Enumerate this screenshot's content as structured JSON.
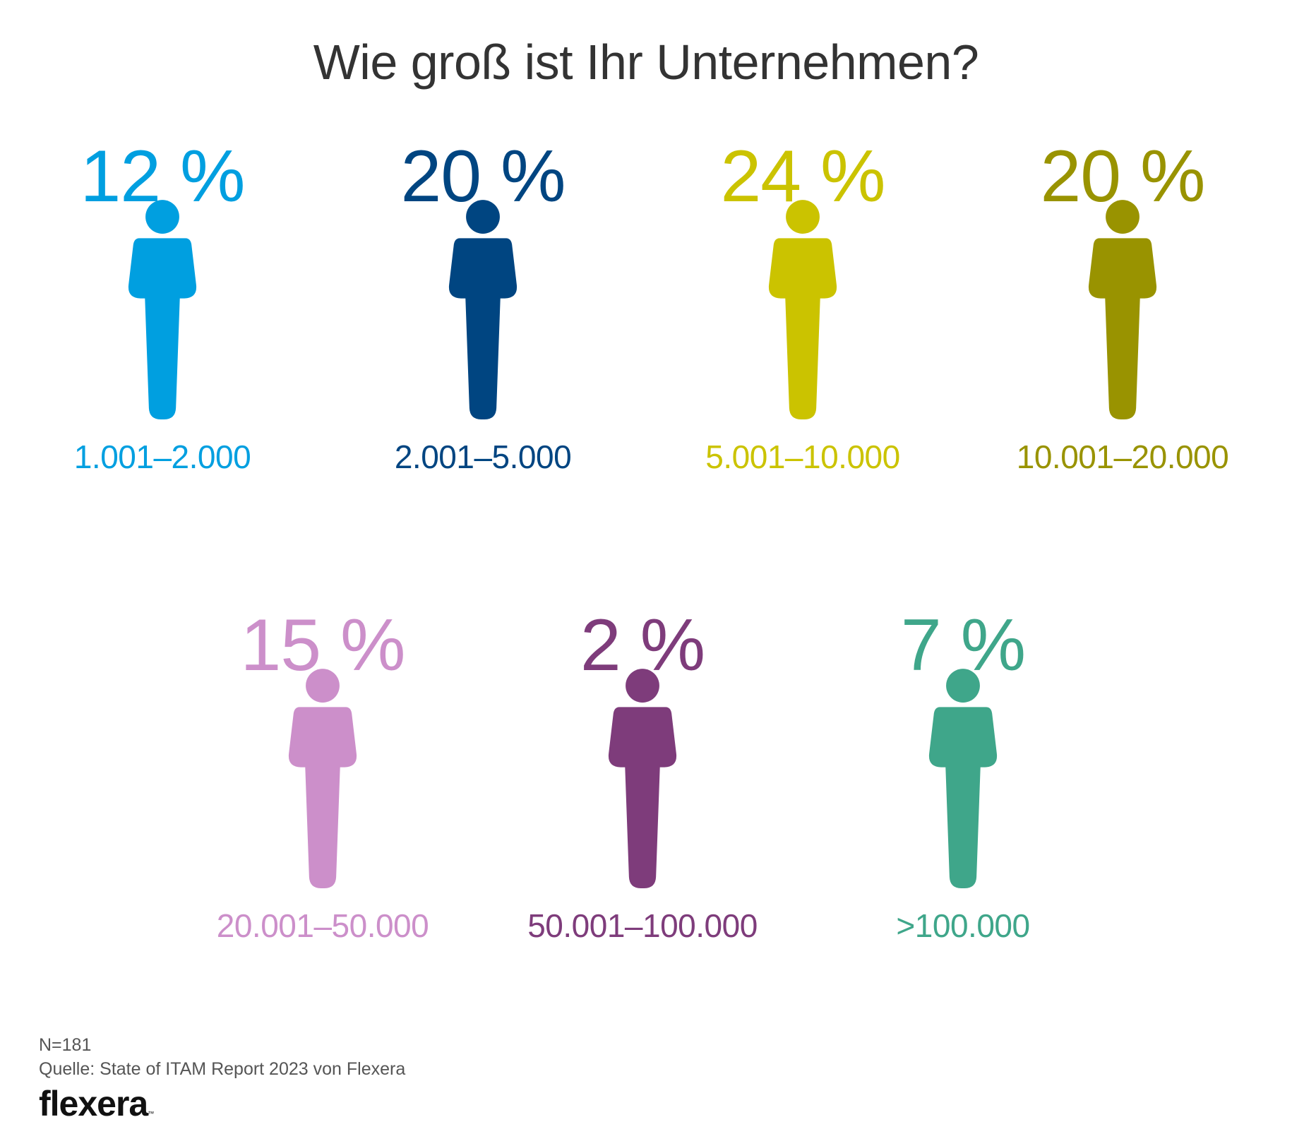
{
  "title": "Wie groß ist Ihr Unternehmen?",
  "chart_data": {
    "type": "pictogram",
    "title": "Wie groß ist Ihr Unternehmen?",
    "unit": "%",
    "categories": [
      "1.001–2.000",
      "2.001–5.000",
      "5.001–10.000",
      "10.001–20.000",
      "20.001–50.000",
      "50.001–100.000",
      ">100.000"
    ],
    "values": [
      12,
      20,
      24,
      20,
      15,
      2,
      7
    ],
    "value_labels": [
      "12 %",
      "20 %",
      "24 %",
      "20 %",
      "15 %",
      "2 %",
      "7 %"
    ],
    "colors": [
      "#009fe0",
      "#004581",
      "#cbc300",
      "#999300",
      "#cc8fca",
      "#7e3c7b",
      "#3fa68a"
    ]
  },
  "footer": {
    "sample": "N=181",
    "source": "Quelle: State of ITAM Report 2023 von Flexera",
    "logo": "flexera",
    "logo_tm": "™"
  }
}
